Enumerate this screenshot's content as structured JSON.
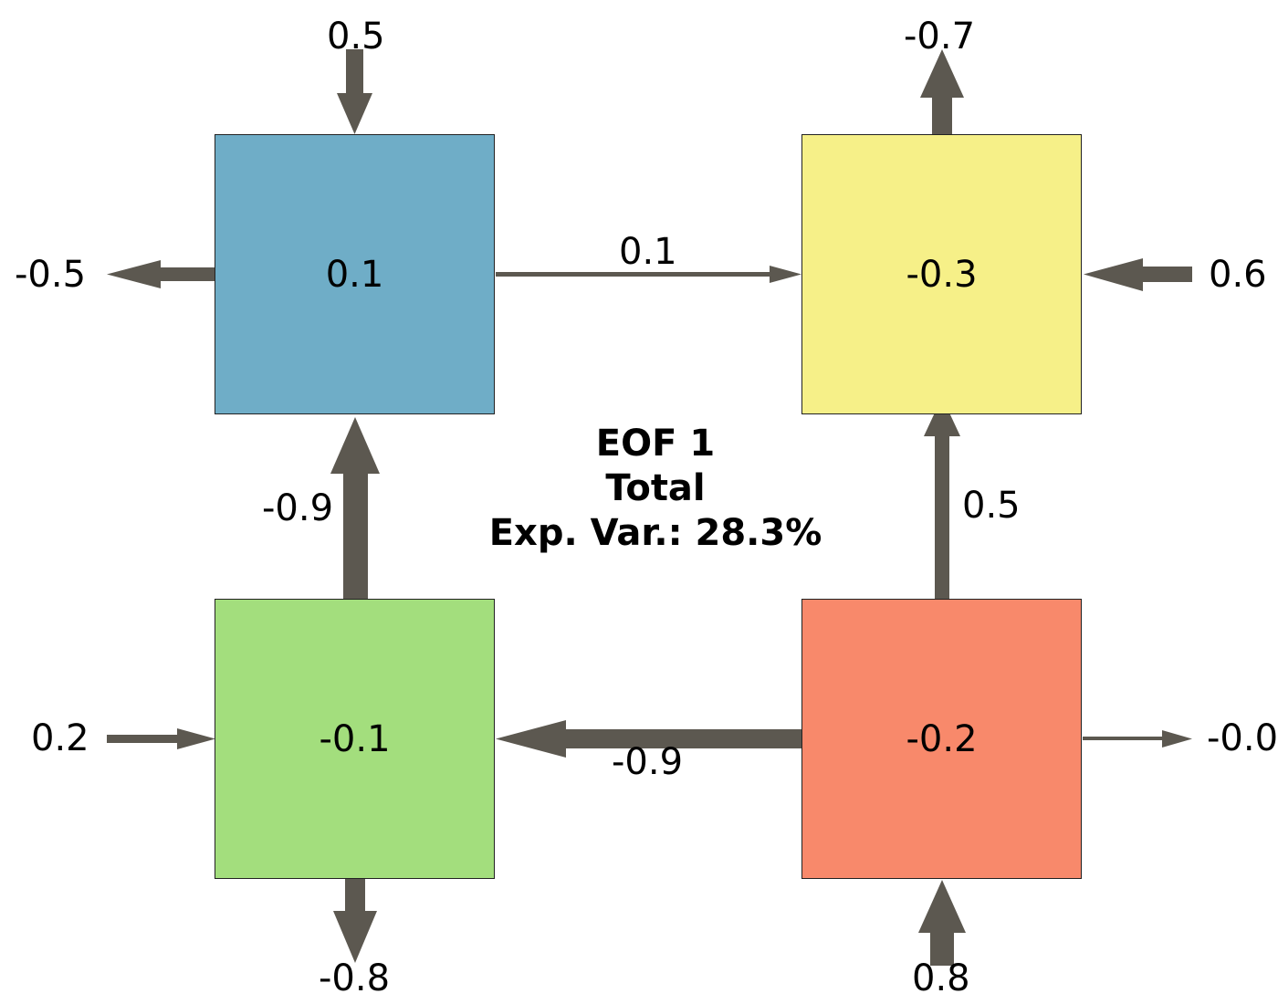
{
  "title": {
    "line1": "EOF 1",
    "line2": "Total",
    "line3": "Exp. Var.: 28.3%"
  },
  "colors": {
    "arrow": "#5c5850",
    "box_top_left": "#6fadc7",
    "box_top_right": "#f6f088",
    "box_bottom_left": "#a3de7d",
    "box_bottom_right": "#f8896b"
  },
  "boxes": {
    "top_left": "0.1",
    "top_right": "-0.3",
    "bottom_left": "-0.1",
    "bottom_right": "-0.2"
  },
  "arrows": {
    "tl_top_in": "0.5",
    "tl_left_out": "-0.5",
    "tl_to_tr": "0.1",
    "tr_top_out": "-0.7",
    "tr_right_in": "0.6",
    "bl_to_tl": "-0.9",
    "br_to_tr": "0.5",
    "bl_left_in": "0.2",
    "br_to_bl": "-0.9",
    "br_right_out": "-0.0",
    "bl_bottom_out": "-0.8",
    "br_bottom_in": "0.8"
  }
}
